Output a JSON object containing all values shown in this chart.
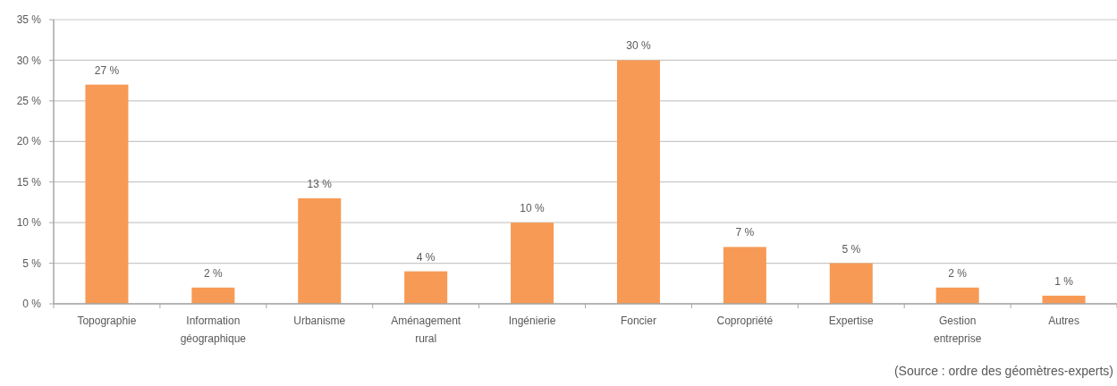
{
  "chart_data": {
    "type": "bar",
    "categories": [
      "Topographie",
      "Information géographique",
      "Urbanisme",
      "Aménagement rural",
      "Ingénierie",
      "Foncier",
      "Copropriété",
      "Expertise",
      "Gestion entreprise",
      "Autres"
    ],
    "values": [
      27,
      2,
      13,
      4,
      10,
      30,
      7,
      5,
      2,
      1
    ],
    "value_labels": [
      "27 %",
      "2 %",
      "13 %",
      "4 %",
      "10 %",
      "30 %",
      "7 %",
      "5 %",
      "2 %",
      "1 %"
    ],
    "color": "#f79a55",
    "ylim": [
      0,
      35
    ],
    "yticks": [
      {
        "value": 0,
        "label": "0 %"
      },
      {
        "value": 5,
        "label": "5 %"
      },
      {
        "value": 10,
        "label": "10 %"
      },
      {
        "value": 15,
        "label": "15 %"
      },
      {
        "value": 20,
        "label": "20 %"
      },
      {
        "value": 25,
        "label": "25 %"
      },
      {
        "value": 30,
        "label": "30 %"
      },
      {
        "value": 35,
        "label": "35 %"
      }
    ],
    "grid": "y",
    "annotations": [
      "(Source : ordre des géomètres-experts)"
    ]
  }
}
